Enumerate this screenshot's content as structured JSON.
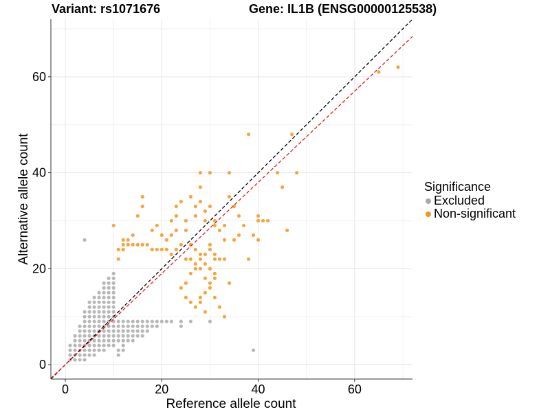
{
  "title": {
    "variant_label": "Variant: rs1071676",
    "gene_label": "Gene: IL1B (ENSG00000125538)"
  },
  "legend": {
    "title": "Significance",
    "items": [
      {
        "label": "Excluded",
        "color": "#aaaaaa"
      },
      {
        "label": "Non-significant",
        "color": "#f7941d"
      }
    ]
  },
  "chart_data": {
    "type": "scatter",
    "title": "Variant: rs1071676    Gene: IL1B (ENSG00000125538)",
    "xlabel": "Reference allele count",
    "ylabel": "Alternative allele count",
    "xlim": [
      -3,
      72
    ],
    "ylim": [
      -3,
      72
    ],
    "xticks": [
      0,
      20,
      40,
      60
    ],
    "yticks": [
      0,
      20,
      40,
      60
    ],
    "grid": true,
    "legend_position": "right",
    "reference_lines": [
      {
        "name": "identity",
        "slope": 1,
        "intercept": 0,
        "color": "#000000",
        "style": "dashed"
      },
      {
        "name": "fit",
        "slope": 0.95,
        "intercept": 0,
        "color": "#e41a1c",
        "style": "dashed"
      }
    ],
    "series": [
      {
        "name": "Excluded",
        "color": "#aaaaaa",
        "points": [
          [
            1,
            1
          ],
          [
            1,
            2
          ],
          [
            1,
            3
          ],
          [
            1,
            4
          ],
          [
            2,
            1
          ],
          [
            2,
            2
          ],
          [
            2,
            3
          ],
          [
            2,
            4
          ],
          [
            2,
            5
          ],
          [
            2,
            6
          ],
          [
            3,
            1
          ],
          [
            3,
            2
          ],
          [
            3,
            3
          ],
          [
            3,
            4
          ],
          [
            3,
            5
          ],
          [
            3,
            6
          ],
          [
            3,
            7
          ],
          [
            3,
            8
          ],
          [
            4,
            1
          ],
          [
            4,
            2
          ],
          [
            4,
            3
          ],
          [
            4,
            4
          ],
          [
            4,
            5
          ],
          [
            4,
            6
          ],
          [
            4,
            7
          ],
          [
            4,
            8
          ],
          [
            4,
            9
          ],
          [
            4,
            10
          ],
          [
            4,
            11
          ],
          [
            4,
            26
          ],
          [
            5,
            2
          ],
          [
            5,
            3
          ],
          [
            5,
            4
          ],
          [
            5,
            5
          ],
          [
            5,
            6
          ],
          [
            5,
            7
          ],
          [
            5,
            8
          ],
          [
            5,
            9
          ],
          [
            5,
            10
          ],
          [
            5,
            11
          ],
          [
            5,
            12
          ],
          [
            5,
            13
          ],
          [
            6,
            2
          ],
          [
            6,
            3
          ],
          [
            6,
            4
          ],
          [
            6,
            5
          ],
          [
            6,
            6
          ],
          [
            6,
            7
          ],
          [
            6,
            8
          ],
          [
            6,
            9
          ],
          [
            6,
            10
          ],
          [
            6,
            11
          ],
          [
            6,
            12
          ],
          [
            6,
            13
          ],
          [
            6,
            14
          ],
          [
            7,
            3
          ],
          [
            7,
            4
          ],
          [
            7,
            5
          ],
          [
            7,
            6
          ],
          [
            7,
            7
          ],
          [
            7,
            8
          ],
          [
            7,
            9
          ],
          [
            7,
            10
          ],
          [
            7,
            11
          ],
          [
            7,
            12
          ],
          [
            7,
            13
          ],
          [
            7,
            14
          ],
          [
            7,
            15
          ],
          [
            8,
            3
          ],
          [
            8,
            4
          ],
          [
            8,
            5
          ],
          [
            8,
            6
          ],
          [
            8,
            7
          ],
          [
            8,
            8
          ],
          [
            8,
            9
          ],
          [
            8,
            10
          ],
          [
            8,
            11
          ],
          [
            8,
            12
          ],
          [
            8,
            13
          ],
          [
            8,
            14
          ],
          [
            8,
            15
          ],
          [
            8,
            16
          ],
          [
            8,
            17
          ],
          [
            9,
            4
          ],
          [
            9,
            5
          ],
          [
            9,
            6
          ],
          [
            9,
            7
          ],
          [
            9,
            8
          ],
          [
            9,
            9
          ],
          [
            9,
            10
          ],
          [
            9,
            11
          ],
          [
            9,
            12
          ],
          [
            9,
            13
          ],
          [
            9,
            14
          ],
          [
            9,
            15
          ],
          [
            9,
            16
          ],
          [
            9,
            17
          ],
          [
            9,
            18
          ],
          [
            10,
            4
          ],
          [
            10,
            5
          ],
          [
            10,
            6
          ],
          [
            10,
            7
          ],
          [
            10,
            8
          ],
          [
            10,
            9
          ],
          [
            10,
            10
          ],
          [
            10,
            11
          ],
          [
            10,
            12
          ],
          [
            10,
            13
          ],
          [
            10,
            14
          ],
          [
            10,
            15
          ],
          [
            10,
            16
          ],
          [
            10,
            17
          ],
          [
            10,
            18
          ],
          [
            10,
            19
          ],
          [
            11,
            5
          ],
          [
            11,
            6
          ],
          [
            11,
            7
          ],
          [
            11,
            8
          ],
          [
            11,
            9
          ],
          [
            12,
            4
          ],
          [
            12,
            5
          ],
          [
            12,
            6
          ],
          [
            12,
            7
          ],
          [
            12,
            8
          ],
          [
            12,
            9
          ],
          [
            13,
            5
          ],
          [
            13,
            6
          ],
          [
            13,
            7
          ],
          [
            13,
            8
          ],
          [
            13,
            9
          ],
          [
            14,
            5
          ],
          [
            14,
            6
          ],
          [
            14,
            7
          ],
          [
            14,
            8
          ],
          [
            14,
            9
          ],
          [
            15,
            6
          ],
          [
            15,
            7
          ],
          [
            15,
            8
          ],
          [
            15,
            9
          ],
          [
            16,
            6
          ],
          [
            16,
            7
          ],
          [
            16,
            8
          ],
          [
            16,
            9
          ],
          [
            17,
            7
          ],
          [
            17,
            8
          ],
          [
            17,
            9
          ],
          [
            18,
            8
          ],
          [
            18,
            9
          ],
          [
            19,
            8
          ],
          [
            19,
            9
          ],
          [
            20,
            9
          ],
          [
            21,
            9
          ],
          [
            22,
            9
          ],
          [
            24,
            8
          ],
          [
            24,
            9
          ],
          [
            26,
            9
          ],
          [
            30,
            9
          ],
          [
            39,
            3
          ],
          [
            11,
            2
          ],
          [
            11,
            3
          ],
          [
            12,
            3
          ]
        ]
      },
      {
        "name": "Non-significant",
        "color": "#f7941d",
        "points": [
          [
            10,
            29
          ],
          [
            11,
            22
          ],
          [
            11,
            24
          ],
          [
            12,
            26
          ],
          [
            12,
            25
          ],
          [
            13,
            26
          ],
          [
            14,
            27
          ],
          [
            15,
            31
          ],
          [
            16,
            33
          ],
          [
            16,
            35
          ],
          [
            18,
            28
          ],
          [
            19,
            29
          ],
          [
            20,
            27
          ],
          [
            21,
            26
          ],
          [
            22,
            30
          ],
          [
            22,
            27
          ],
          [
            23,
            31
          ],
          [
            23,
            33
          ],
          [
            23,
            28
          ],
          [
            24,
            34
          ],
          [
            25,
            28
          ],
          [
            25,
            30
          ],
          [
            26,
            35
          ],
          [
            27,
            33
          ],
          [
            27,
            31
          ],
          [
            28,
            40
          ],
          [
            28,
            34
          ],
          [
            28,
            37
          ],
          [
            29,
            32
          ],
          [
            29,
            30
          ],
          [
            30,
            33
          ],
          [
            30,
            40
          ],
          [
            31,
            30
          ],
          [
            31,
            29
          ],
          [
            32,
            28
          ],
          [
            33,
            29
          ],
          [
            34,
            40
          ],
          [
            34,
            35
          ],
          [
            35,
            33
          ],
          [
            35,
            26
          ],
          [
            36,
            27
          ],
          [
            36,
            31
          ],
          [
            37,
            29
          ],
          [
            38,
            22
          ],
          [
            38,
            48
          ],
          [
            39,
            27
          ],
          [
            40,
            31
          ],
          [
            40,
            30
          ],
          [
            40,
            26
          ],
          [
            41,
            30
          ],
          [
            42,
            30
          ],
          [
            44,
            40
          ],
          [
            45,
            37
          ],
          [
            46,
            28
          ],
          [
            47,
            48
          ],
          [
            48,
            40
          ],
          [
            65,
            61
          ],
          [
            69,
            62
          ],
          [
            30,
            25
          ],
          [
            31,
            22
          ],
          [
            31,
            23
          ],
          [
            32,
            22
          ],
          [
            33,
            26
          ],
          [
            33,
            22
          ],
          [
            30,
            24
          ],
          [
            29,
            23
          ],
          [
            28,
            22
          ],
          [
            27,
            20
          ],
          [
            26,
            19
          ],
          [
            25,
            17
          ],
          [
            24,
            16
          ],
          [
            25,
            22
          ],
          [
            26,
            22
          ],
          [
            27,
            21
          ],
          [
            28,
            23
          ],
          [
            28,
            20
          ],
          [
            29,
            21
          ],
          [
            30,
            20
          ],
          [
            31,
            19
          ],
          [
            31,
            18
          ],
          [
            29,
            18
          ],
          [
            29,
            15
          ],
          [
            28,
            14
          ],
          [
            30,
            17
          ],
          [
            30,
            16
          ],
          [
            27,
            12
          ],
          [
            28,
            13
          ],
          [
            26,
            13
          ],
          [
            25,
            14
          ],
          [
            27,
            24
          ],
          [
            26,
            25
          ],
          [
            24,
            25
          ],
          [
            23,
            24
          ],
          [
            22,
            23
          ],
          [
            21,
            24
          ],
          [
            20,
            24
          ],
          [
            19,
            24
          ],
          [
            18,
            24
          ],
          [
            17,
            25
          ],
          [
            16,
            25
          ],
          [
            15,
            25
          ],
          [
            14,
            25
          ],
          [
            13,
            25
          ],
          [
            12,
            24
          ],
          [
            32,
            12
          ],
          [
            33,
            10
          ],
          [
            29,
            11
          ],
          [
            31,
            14
          ],
          [
            34,
            17
          ]
        ]
      }
    ]
  }
}
